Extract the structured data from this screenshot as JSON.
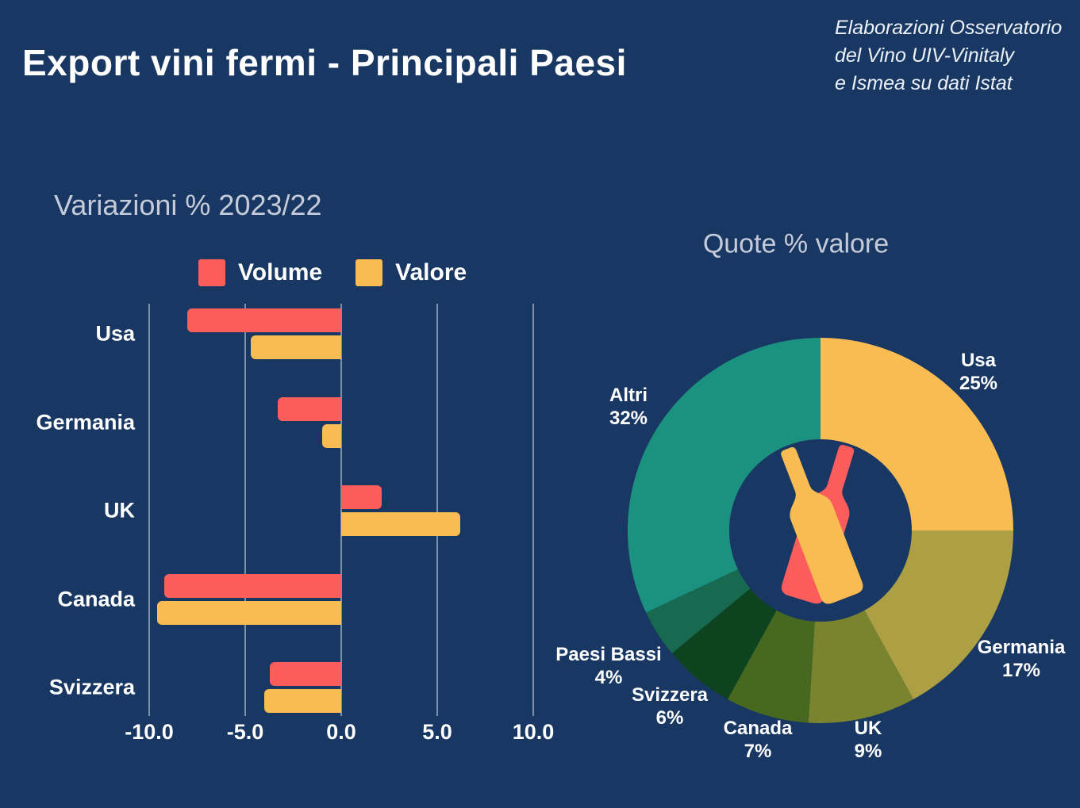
{
  "page": {
    "title": "Export vini fermi - Principali Paesi",
    "attribution_lines": [
      "Elaborazioni Osservatorio",
      "del Vino UIV-Vinitaly",
      "e Ismea su dati Istat"
    ]
  },
  "colors": {
    "background": "#183763",
    "title_text": "#FFFFFF",
    "muted_text": "#C5CBD8",
    "gridline": "#C1CCDC",
    "volume_red": "#FA5D5B",
    "valore_amber": "#F8BC52"
  },
  "chart_data": [
    {
      "type": "bar",
      "orientation": "horizontal",
      "title": "Variazioni % 2023/22",
      "categories": [
        "Usa",
        "Germania",
        "UK",
        "Canada",
        "Svizzera"
      ],
      "series": [
        {
          "name": "Volume",
          "color": "#FA5D5B",
          "values": [
            -8.0,
            -3.3,
            2.1,
            -9.2,
            -3.7
          ]
        },
        {
          "name": "Valore",
          "color": "#F8BC52",
          "values": [
            -4.7,
            -1.0,
            6.2,
            -9.6,
            -4.0
          ]
        }
      ],
      "xlabel": "",
      "ylabel": "",
      "xlim": [
        -10,
        10
      ],
      "x_tick_values": [
        -10,
        -5,
        0,
        5,
        10
      ],
      "x_ticks": [
        "-10.0",
        "-5.0",
        "0.0",
        "5.0",
        "10.0"
      ],
      "grid": "vertical",
      "legend_position": "top"
    },
    {
      "type": "pie",
      "subtype": "donut",
      "title": "Quote % valore",
      "start_angle_deg": 0,
      "direction": "clockwise",
      "legend_position": "labels-around",
      "slices": [
        {
          "label": "Usa",
          "pct": 25,
          "color": "#F8BC52"
        },
        {
          "label": "Germania",
          "pct": 17,
          "color": "#ADA044"
        },
        {
          "label": "UK",
          "pct": 9,
          "color": "#7A842E"
        },
        {
          "label": "Canada",
          "pct": 7,
          "color": "#47691F"
        },
        {
          "label": "Svizzera",
          "pct": 6,
          "color": "#0D431F"
        },
        {
          "label": "Paesi Bassi",
          "pct": 4,
          "color": "#17694F"
        },
        {
          "label": "Altri",
          "pct": 32,
          "color": "#1B9180"
        }
      ]
    }
  ]
}
